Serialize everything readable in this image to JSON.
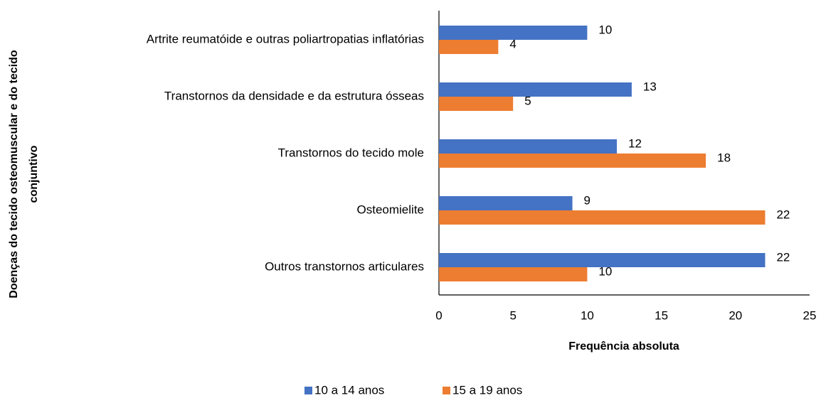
{
  "chart_data": {
    "type": "bar",
    "orientation": "horizontal",
    "xlabel": "Frequência absoluta",
    "ylabel": [
      "Doenças do tecido osteomuscular e do tecido",
      "conjuntivo"
    ],
    "categories": [
      "Artrite reumatóide e outras poliartropatias inflatórias",
      "Transtornos da densidade e da estrutura ósseas",
      "Transtornos do tecido mole",
      "Osteomielite",
      "Outros transtornos articulares"
    ],
    "series": [
      {
        "name": "10 a 14 anos",
        "color": "#4472c4",
        "values": [
          10,
          13,
          12,
          9,
          22
        ]
      },
      {
        "name": "15 a 19 anos",
        "color": "#ed7d31",
        "values": [
          4,
          5,
          18,
          22,
          10
        ]
      }
    ],
    "xlim": [
      0,
      25
    ],
    "xticks": [
      0,
      5,
      10,
      15,
      20,
      25
    ],
    "grid": false,
    "legend": "bottom"
  }
}
